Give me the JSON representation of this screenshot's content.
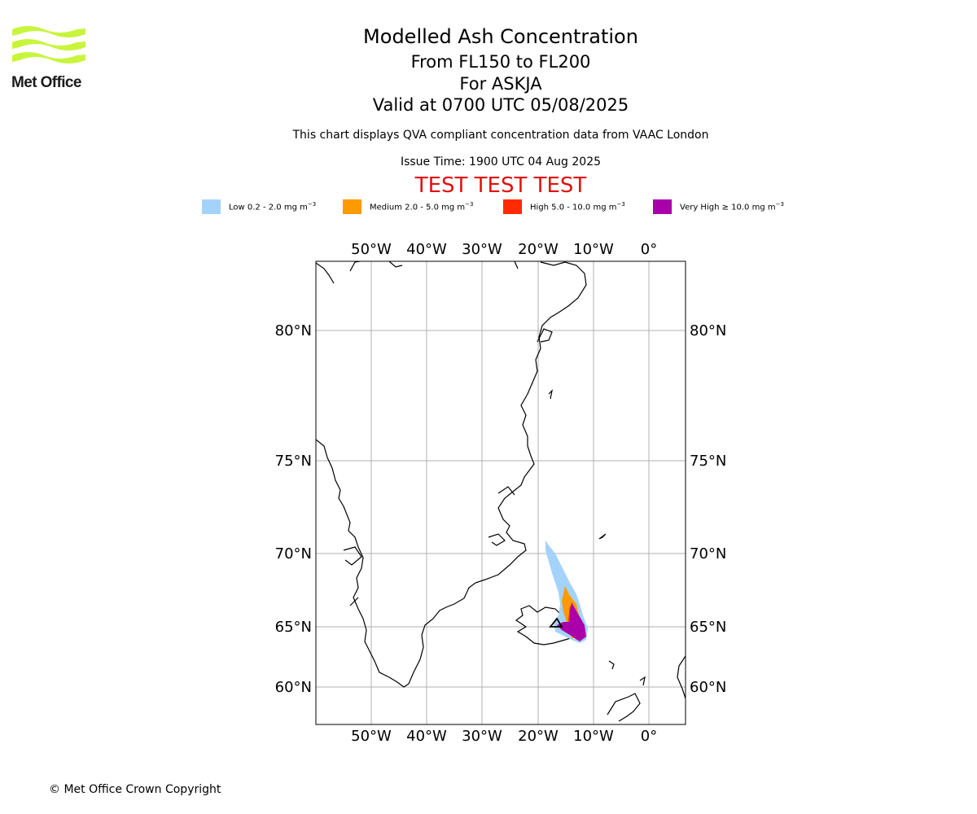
{
  "logo": {
    "text": "Met Office",
    "color": "#c8f53c"
  },
  "title": {
    "main": "Modelled Ash Concentration",
    "levels": "From FL150 to FL200",
    "volcano": "For ASKJA",
    "valid": "Valid at 0700 UTC 05/08/2025"
  },
  "subtitle": "This chart displays QVA compliant concentration data from VAAC London",
  "issue_time": "Issue Time: 1900 UTC 04 Aug 2025",
  "test_banner": "TEST TEST TEST",
  "test_color": "#e0110f",
  "legend": [
    {
      "label": "Low 0.2 - 2.0 mg m",
      "color": "#a3d3fb"
    },
    {
      "label": "Medium 2.0 - 5.0 mg m",
      "color": "#ff9a00"
    },
    {
      "label": "High 5.0 - 10.0 mg m",
      "color": "#ff2a00"
    },
    {
      "label": "Very High ≥ 10.0 mg m",
      "color": "#aa00aa"
    }
  ],
  "legend_unit_exponent": "−3",
  "axes": {
    "lon_labels": [
      "50°W",
      "40°W",
      "30°W",
      "20°W",
      "10°W",
      "0°"
    ],
    "lat_labels": [
      "80°N",
      "75°N",
      "70°N",
      "65°N",
      "60°N"
    ]
  },
  "copyright": "© Met Office Crown Copyright"
}
